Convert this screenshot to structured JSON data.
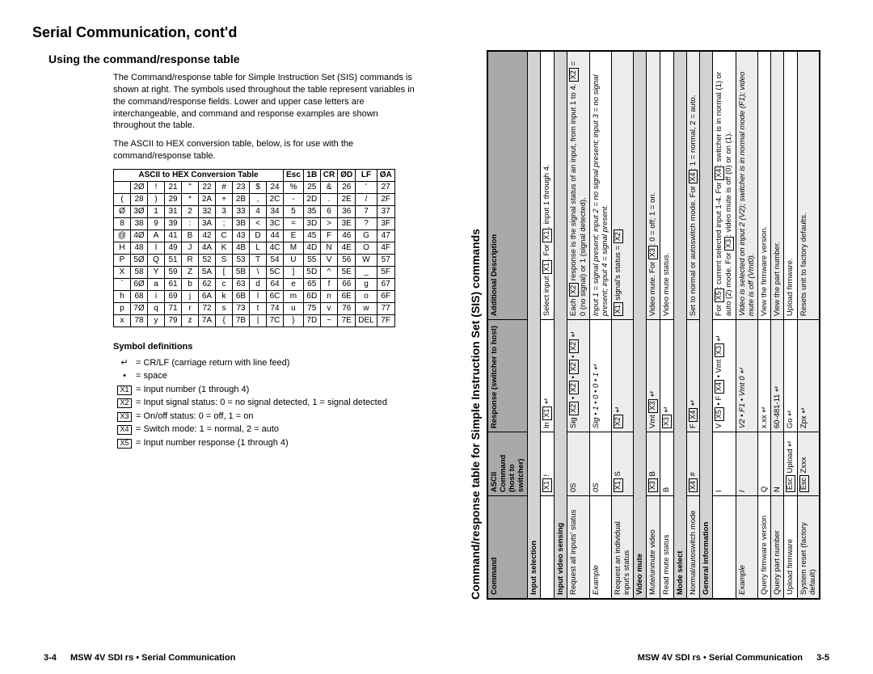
{
  "left": {
    "main_title": "Serial Communication, cont'd",
    "sub_title": "Using the command/response table",
    "para1": "The Command/response table for Simple Instruction Set (SIS) commands is shown at right.  The symbols used throughout the table represent variables in the command/response fields. Lower and upper case letters are interchangeable, and command and response examples are shown throughout the table.",
    "para2": "The ASCII to HEX conversion table, below, is for use with the command/response table.",
    "ascii_header_left": "ASCII to HEX  Conversion Table",
    "ascii_header_right_cells": [
      "Esc",
      "1B",
      "CR",
      "ØD",
      "LF",
      "ØA"
    ],
    "ascii_rows": [
      [
        " ",
        "2Ø",
        "!",
        "21",
        "\"",
        "22",
        "#",
        "23",
        "$",
        "24",
        "%",
        "25",
        "&",
        "26",
        "'",
        "27"
      ],
      [
        "(",
        "28",
        ")",
        "29",
        "*",
        "2A",
        "+",
        "2B",
        ",",
        "2C",
        "-",
        "2D",
        ".",
        "2E",
        "/",
        "2F"
      ],
      [
        "Ø",
        "3Ø",
        "1",
        "31",
        "2",
        "32",
        "3",
        "33",
        "4",
        "34",
        "5",
        "35",
        "6",
        "36",
        "7",
        "37"
      ],
      [
        "8",
        "38",
        "9",
        "39",
        ":",
        "3A",
        ";",
        "3B",
        "<",
        "3C",
        "=",
        "3D",
        ">",
        "3E",
        "?",
        "3F"
      ],
      [
        "@",
        "4Ø",
        "A",
        "41",
        "B",
        "42",
        "C",
        "43",
        "D",
        "44",
        "E",
        "45",
        "F",
        "46",
        "G",
        "47"
      ],
      [
        "H",
        "48",
        "I",
        "49",
        "J",
        "4A",
        "K",
        "4B",
        "L",
        "4C",
        "M",
        "4D",
        "N",
        "4E",
        "O",
        "4F"
      ],
      [
        "P",
        "5Ø",
        "Q",
        "51",
        "R",
        "52",
        "S",
        "53",
        "T",
        "54",
        "U",
        "55",
        "V",
        "56",
        "W",
        "57"
      ],
      [
        "X",
        "58",
        "Y",
        "59",
        "Z",
        "5A",
        "[",
        "5B",
        "\\",
        "5C",
        "]",
        "5D",
        "^",
        "5E",
        "_",
        "5F"
      ],
      [
        "`",
        "6Ø",
        "a",
        "61",
        "b",
        "62",
        "c",
        "63",
        "d",
        "64",
        "e",
        "65",
        "f",
        "66",
        "g",
        "67"
      ],
      [
        "h",
        "68",
        "i",
        "69",
        "j",
        "6A",
        "k",
        "6B",
        "l",
        "6C",
        "m",
        "6D",
        "n",
        "6E",
        "o",
        "6F"
      ],
      [
        "p",
        "7Ø",
        "q",
        "71",
        "r",
        "72",
        "s",
        "73",
        "t",
        "74",
        "u",
        "75",
        "v",
        "76",
        "w",
        "77"
      ],
      [
        "x",
        "78",
        "y",
        "79",
        "z",
        "7A",
        "{",
        "7B",
        "|",
        "7C",
        "}",
        "7D",
        "~",
        "7E",
        "DEL",
        "7F"
      ]
    ],
    "symdef_title": "Symbol definitions",
    "symdefs": [
      {
        "sym": "↵",
        "text": "= CR/LF (carriage return with line feed)"
      },
      {
        "sym": "•",
        "text": "= space"
      },
      {
        "sym": "X1",
        "boxed": true,
        "text": "= Input number (1 through 4)"
      },
      {
        "sym": "X2",
        "boxed": true,
        "text": "= Input signal status: 0 = no signal detected, 1 = signal detected"
      },
      {
        "sym": "X3",
        "boxed": true,
        "text": "= On/off status: 0 = off, 1 = on"
      },
      {
        "sym": "X4",
        "boxed": true,
        "text": "= Switch mode: 1 = normal, 2 = auto"
      },
      {
        "sym": "X5",
        "boxed": true,
        "text": "= Input number response (1 through 4)"
      }
    ],
    "footer_page": "3-4",
    "footer_text": "MSW 4V SDI rs • Serial Communication"
  },
  "right": {
    "sis_caption": "Command/response table for Simple Instruction Set (SIS) commands",
    "headers": {
      "command": "Command",
      "ascii": "ASCII Command (host to switcher)",
      "response": "Response (switcher to host)",
      "desc": "Additional Description"
    },
    "sections": [
      {
        "type": "sec",
        "label": "Input selection",
        "rows": [
          {
            "cmd": "",
            "ascii": "X1 !",
            "resp": "In X1 ↵",
            "desc": "Select input X1. For X1, input 1 through 4."
          }
        ]
      },
      {
        "type": "sec",
        "label": "Input video sensing",
        "rows": [
          {
            "cmd": "Request all inputs' status",
            "ascii": "0S",
            "resp": "Sig X2 • X2 • X2 • X2 ↵",
            "desc": "Each X2 response is the signal status of an input, from input 1 to 4. X2 = 0 (no signal) or 1 (signal detected).",
            "alt": true
          },
          {
            "cmd": "Example",
            "italic": true,
            "ascii": "0S",
            "resp": "Sig • 1 • 0 • 0 • 1 ↵",
            "desc": "Input 1 = signal present; input 2 = no signal present; input 3 = no signal present; input 4 = signal present.",
            "descItalic": true
          },
          {
            "cmd": "Request an individual input's status",
            "ascii": "X1 S",
            "resp": "X2 ↵",
            "desc": "X1 signal's status = X2.",
            "alt": true
          }
        ]
      },
      {
        "type": "sec",
        "label": "Video mute",
        "rows": [
          {
            "cmd": "Mute/unmute video",
            "ascii": "X3 B",
            "resp": "Vmt X3 ↵",
            "desc": "Video mute. For X3: 0 = off; 1 = on.",
            "alt": true
          },
          {
            "cmd": "Read mute status",
            "ascii": "B",
            "resp": "X3 ↵",
            "desc": "Video mute status."
          }
        ]
      },
      {
        "type": "sec",
        "label": "Mode select",
        "rows": [
          {
            "cmd": "Normal/autoswitch mode",
            "ascii": "X4 #",
            "resp": "F X4 ↵",
            "desc": "Set to normal or autoswitch mode. For X4: 1 = normal, 2 = auto.",
            "alt": true
          }
        ]
      },
      {
        "type": "sec",
        "label": "General information",
        "rows": [
          {
            "cmd": "",
            "ascii": "I",
            "resp": "V X5 • F X4 • Vmt X3 ↵",
            "desc": "For X5: current selected input 1-4. For X4: switcher is in normal (1) or auto (2) mode. For X3: video mute is off (0) or on (1)."
          },
          {
            "cmd": "Example",
            "italic": true,
            "ascii": "I",
            "resp": "V2 • F1 • Vmt 0 ↵",
            "desc": "Video is selected on input 2 (V2); switcher is in normal mode (F1); video mute is off (Vmt0).",
            "descItalic": true,
            "alt": true
          },
          {
            "cmd": "Query firmware version",
            "ascii": "Q",
            "resp": "x.xx ↵",
            "desc": "View the firmware version."
          },
          {
            "cmd": "Query part number",
            "ascii": "N",
            "resp": "60-481-11 ↵",
            "desc": "View the part number.",
            "alt": true
          },
          {
            "cmd": "Upload firmware",
            "ascii": "Esc Upload ↵",
            "resp": "Go ↵",
            "desc": "Upload firmware."
          },
          {
            "cmd": "System reset (factory default)",
            "ascii": "Esc Zxxx",
            "resp": "Zpx ↵",
            "desc": "Resets unit to factory defaults.",
            "alt": true
          }
        ]
      }
    ],
    "footer_text": "MSW 4V SDI rs • Serial Communication",
    "footer_page": "3-5",
    "colors": {
      "header_bg": "#a9a9a9",
      "alt_bg": "#ececec",
      "border": "#000000"
    }
  }
}
